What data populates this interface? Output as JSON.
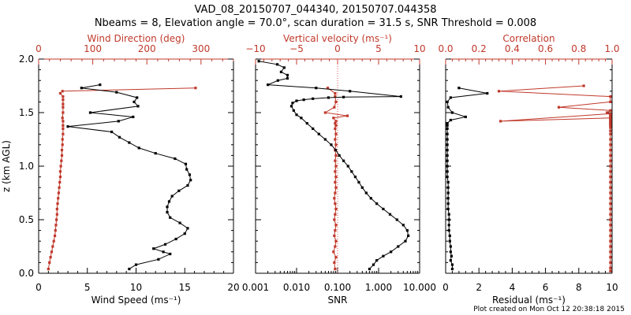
{
  "figure": {
    "title_line1": "VAD_08_20150707_044340, 20150707.044358",
    "title_line2": "Nbeams = 8, Elevation angle = 70.0°, scan duration = 31.5 s, SNR Threshold = 0.008",
    "footer": "Plot created on Mon Oct 12 20:38:18 2015"
  },
  "colors": {
    "black": "#000000",
    "red": "#c0392b",
    "dotted_ref": "#e05050"
  },
  "chart_data": [
    {
      "type": "line",
      "ylabel": "z (km AGL)",
      "ylim": [
        0,
        2
      ],
      "yticks": [
        0.0,
        0.5,
        1.0,
        1.5,
        2.0
      ],
      "ytick_labels": [
        "0.0",
        "0.5",
        "1.0",
        "1.5",
        "2.0"
      ],
      "bottom_axis": {
        "label": "Wind Speed (ms⁻¹)",
        "lim": [
          0,
          20
        ],
        "ticks": [
          0,
          5,
          10,
          15,
          20
        ],
        "tick_labels": [
          "0",
          "5",
          "10",
          "15",
          "20"
        ],
        "scale": "linear"
      },
      "top_axis": {
        "label": "Wind Direction (deg)",
        "lim": [
          0,
          360
        ],
        "ticks": [
          0,
          100,
          200,
          300
        ],
        "tick_labels": [
          "0",
          "100",
          "200",
          "300"
        ],
        "scale": "linear"
      },
      "series": [
        {
          "name": "Wind Speed",
          "axis": "bottom",
          "color": "#000000",
          "x": [
            9.3,
            10.0,
            12.3,
            13.5,
            12.8,
            11.8,
            13.0,
            14.1,
            15.0,
            15.3,
            14.5,
            13.5,
            13.2,
            13.2,
            13.4,
            13.7,
            14.4,
            15.3,
            15.6,
            15.5,
            15.2,
            15.1,
            14.0,
            12.0,
            10.3,
            9.3,
            8.3,
            7.5,
            3.0,
            8.2,
            9.7,
            5.3,
            10.2,
            9.8,
            10.1,
            8.0,
            4.4,
            6.3
          ],
          "y": [
            0.04,
            0.08,
            0.13,
            0.18,
            0.2,
            0.23,
            0.27,
            0.32,
            0.37,
            0.42,
            0.47,
            0.52,
            0.57,
            0.62,
            0.67,
            0.72,
            0.77,
            0.82,
            0.87,
            0.92,
            0.97,
            1.02,
            1.07,
            1.12,
            1.17,
            1.22,
            1.27,
            1.32,
            1.37,
            1.42,
            1.46,
            1.5,
            1.56,
            1.6,
            1.64,
            1.69,
            1.73,
            1.76
          ]
        },
        {
          "name": "Wind Direction",
          "axis": "top",
          "color": "#c0392b",
          "x": [
            18,
            20,
            22,
            24,
            26,
            28,
            30,
            31,
            32,
            33,
            34,
            34,
            35,
            36,
            37,
            38,
            39,
            40,
            40,
            41,
            42,
            43,
            43,
            44,
            44,
            45,
            45,
            45,
            45,
            44,
            45,
            45,
            45,
            45,
            45,
            40,
            44,
            290
          ],
          "y": [
            0.04,
            0.1,
            0.15,
            0.2,
            0.25,
            0.3,
            0.35,
            0.4,
            0.45,
            0.5,
            0.55,
            0.6,
            0.65,
            0.7,
            0.75,
            0.8,
            0.85,
            0.9,
            0.95,
            1.0,
            1.05,
            1.1,
            1.15,
            1.2,
            1.25,
            1.3,
            1.35,
            1.38,
            1.42,
            1.45,
            1.5,
            1.55,
            1.58,
            1.62,
            1.65,
            1.68,
            1.7,
            1.73
          ]
        }
      ]
    },
    {
      "type": "line",
      "ylim": [
        0,
        2
      ],
      "bottom_axis": {
        "label": "SNR",
        "lim": [
          0.001,
          10
        ],
        "ticks": [
          0.001,
          0.01,
          0.1,
          1,
          10
        ],
        "tick_labels": [
          "0.001",
          "0.010",
          "0.100",
          "1.000",
          "10.000"
        ],
        "scale": "log"
      },
      "top_axis": {
        "label": "Vertical velocity (ms⁻¹)",
        "lim": [
          -10,
          10
        ],
        "ticks": [
          -10,
          -5,
          0,
          5,
          10
        ],
        "tick_labels": [
          "−10",
          "−5",
          "0",
          "5",
          "10"
        ],
        "scale": "linear"
      },
      "reference_line": {
        "axis": "top",
        "value": 0,
        "style": "dotted"
      },
      "series": [
        {
          "name": "SNR",
          "axis": "bottom",
          "color": "#000000",
          "x": [
            0.6,
            0.75,
            0.9,
            1.3,
            2.0,
            3.0,
            4.5,
            5.3,
            5.0,
            4.0,
            2.8,
            1.9,
            1.3,
            0.9,
            0.65,
            0.5,
            0.4,
            0.33,
            0.27,
            0.22,
            0.18,
            0.14,
            0.11,
            0.09,
            0.07,
            0.05,
            0.035,
            0.025,
            0.018,
            0.013,
            0.01,
            0.0085,
            0.0075,
            0.008,
            0.01,
            0.015,
            0.025,
            0.06,
            0.14,
            3.5,
            0.2,
            0.03,
            0.002,
            0.0035,
            0.006,
            0.006,
            0.0042,
            0.005,
            0.0034,
            0.0012
          ],
          "y": [
            0.04,
            0.08,
            0.12,
            0.16,
            0.2,
            0.25,
            0.3,
            0.35,
            0.4,
            0.45,
            0.5,
            0.55,
            0.6,
            0.65,
            0.7,
            0.75,
            0.8,
            0.85,
            0.9,
            0.95,
            1.0,
            1.05,
            1.1,
            1.15,
            1.2,
            1.25,
            1.3,
            1.35,
            1.4,
            1.45,
            1.48,
            1.52,
            1.56,
            1.59,
            1.61,
            1.62,
            1.63,
            1.64,
            1.645,
            1.65,
            1.7,
            1.73,
            1.76,
            1.8,
            1.82,
            1.85,
            1.88,
            1.92,
            1.95,
            1.98
          ]
        },
        {
          "name": "Vertical velocity",
          "axis": "top",
          "color": "#c0392b",
          "x": [
            -0.3,
            -0.4,
            -0.2,
            -0.5,
            -0.3,
            -0.2,
            -0.4,
            -0.3,
            -0.2,
            -0.4,
            -0.3,
            -0.2,
            -0.3,
            -0.4,
            -0.3,
            -0.2,
            -0.3,
            -0.2,
            -0.3,
            -0.2,
            -0.3,
            -0.2,
            -0.3,
            -0.2,
            -0.3,
            -0.2,
            -0.3,
            -0.2,
            -0.3,
            -0.2,
            -0.5,
            1.2,
            -1.5,
            -0.4,
            -0.2,
            -0.3,
            -0.3,
            -1.2
          ],
          "y": [
            0.04,
            0.1,
            0.15,
            0.2,
            0.25,
            0.3,
            0.35,
            0.4,
            0.45,
            0.5,
            0.55,
            0.6,
            0.65,
            0.7,
            0.75,
            0.8,
            0.85,
            0.9,
            0.95,
            1.0,
            1.05,
            1.1,
            1.15,
            1.2,
            1.25,
            1.3,
            1.35,
            1.38,
            1.4,
            1.42,
            1.45,
            1.47,
            1.5,
            1.55,
            1.6,
            1.65,
            1.68,
            1.73
          ]
        }
      ]
    },
    {
      "type": "line",
      "ylim": [
        0,
        2
      ],
      "bottom_axis": {
        "label": "Residual (ms⁻¹)",
        "lim": [
          0,
          10
        ],
        "ticks": [
          0,
          2,
          4,
          6,
          8,
          10
        ],
        "tick_labels": [
          "0",
          "2",
          "4",
          "6",
          "8",
          "10"
        ],
        "scale": "linear"
      },
      "top_axis": {
        "label": "Correlation",
        "lim": [
          0,
          1
        ],
        "ticks": [
          0,
          0.2,
          0.4,
          0.6,
          0.8,
          1.0
        ],
        "tick_labels": [
          "0.0",
          "0.2",
          "0.4",
          "0.6",
          "0.8",
          "1.0"
        ],
        "scale": "linear"
      },
      "series": [
        {
          "name": "Residual",
          "axis": "bottom",
          "color": "#000000",
          "x": [
            0.4,
            0.4,
            0.3,
            0.35,
            0.3,
            0.3,
            0.25,
            0.25,
            0.2,
            0.2,
            0.2,
            0.2,
            0.15,
            0.15,
            0.15,
            0.15,
            0.15,
            0.15,
            0.1,
            0.1,
            0.1,
            0.1,
            0.1,
            0.1,
            0.1,
            0.1,
            0.1,
            0.1,
            0.1,
            0.1,
            0.3,
            1.2,
            0.4,
            0.15,
            0.1,
            0.3,
            2.5,
            0.8
          ],
          "y": [
            0.04,
            0.08,
            0.12,
            0.16,
            0.2,
            0.25,
            0.3,
            0.35,
            0.4,
            0.45,
            0.5,
            0.55,
            0.6,
            0.65,
            0.7,
            0.75,
            0.8,
            0.85,
            0.9,
            0.95,
            1.0,
            1.05,
            1.1,
            1.15,
            1.2,
            1.25,
            1.3,
            1.35,
            1.38,
            1.4,
            1.43,
            1.46,
            1.5,
            1.55,
            1.6,
            1.64,
            1.68,
            1.73
          ]
        },
        {
          "name": "Correlation",
          "axis": "top",
          "color": "#c0392b",
          "x": [
            0.99,
            0.99,
            0.99,
            0.99,
            0.99,
            0.99,
            0.99,
            0.99,
            0.99,
            0.99,
            0.99,
            0.99,
            0.99,
            0.99,
            0.99,
            0.99,
            0.99,
            0.99,
            0.99,
            0.99,
            0.99,
            0.99,
            0.99,
            0.99,
            0.99,
            0.99,
            0.99,
            0.99,
            0.99,
            0.99,
            0.99,
            0.99,
            0.99,
            0.99,
            0.99,
            0.99,
            0.99,
            0.99,
            0.99,
            0.99,
            0.99,
            0.33,
            0.99,
            0.99,
            0.97,
            0.99,
            0.68,
            0.99,
            0.99,
            0.32,
            0.83
          ],
          "y": [
            0.02,
            0.05,
            0.1,
            0.15,
            0.2,
            0.25,
            0.3,
            0.35,
            0.4,
            0.45,
            0.5,
            0.55,
            0.6,
            0.65,
            0.7,
            0.75,
            0.8,
            0.85,
            0.9,
            0.95,
            1.0,
            1.05,
            1.1,
            1.15,
            1.2,
            1.25,
            1.3,
            1.33,
            1.36,
            1.38,
            1.39,
            1.4,
            1.41,
            1.42,
            1.43,
            1.44,
            1.45,
            1.46,
            1.47,
            1.48,
            1.49,
            1.42,
            1.45,
            1.48,
            1.5,
            1.52,
            1.55,
            1.6,
            1.65,
            1.7,
            1.75
          ]
        }
      ]
    }
  ]
}
